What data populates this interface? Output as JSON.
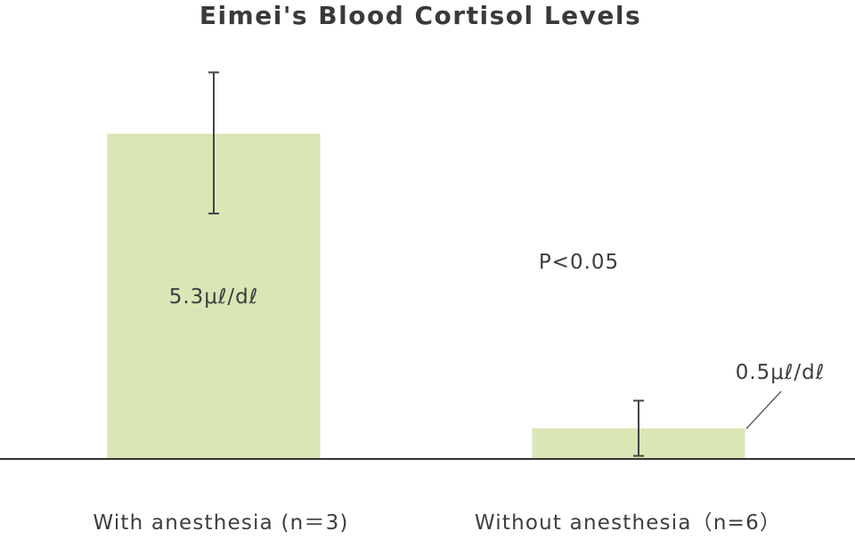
{
  "chart_data": {
    "type": "bar",
    "title": "Eimei's Blood Cortisol Levels",
    "categories": [
      "With anesthesia (n＝3)",
      "Without anesthesia（n=6）"
    ],
    "values": [
      5.3,
      0.5
    ],
    "value_labels": [
      "5.3μℓ/dℓ",
      "0.5μℓ/dℓ"
    ],
    "error_bars": [
      {
        "low": 4.0,
        "high": 6.3
      },
      {
        "low": 0.05,
        "high": 0.95
      }
    ],
    "annotation": "P<0.05",
    "ylim": [
      0,
      6.9
    ],
    "bar_color": "#d9e6b5",
    "axis_color": "#333333",
    "error_color": "#444444"
  }
}
